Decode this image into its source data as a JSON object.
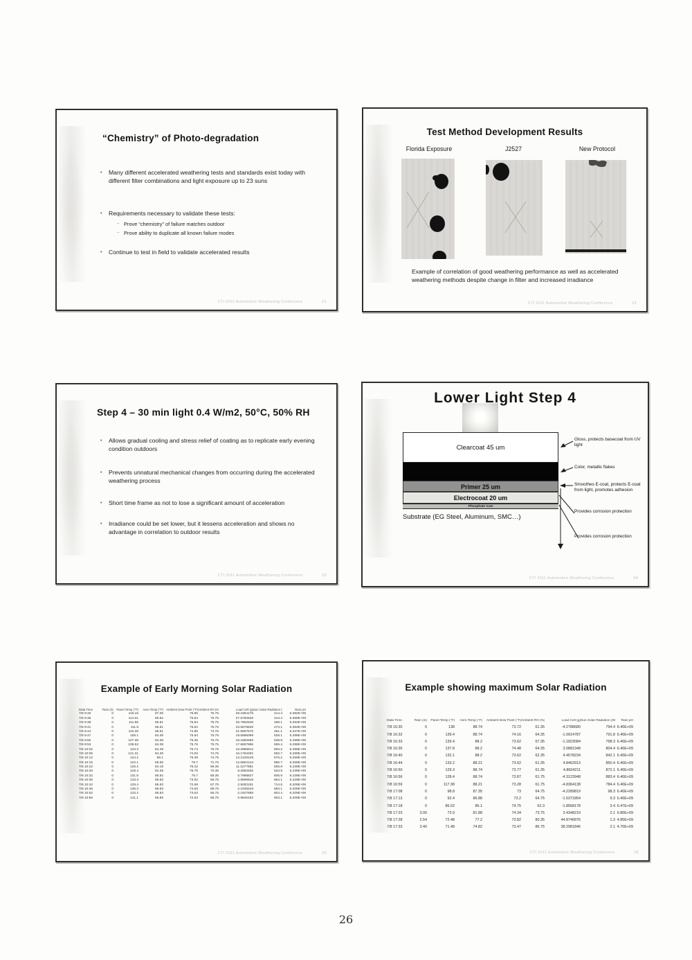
{
  "page": {
    "number": "26"
  },
  "footer": {
    "text": "CTI 2011    Automotive Weathering Conference"
  },
  "slide1": {
    "title": "“Chemistry” of Photo-degradation",
    "bullets": [
      "Many different accelerated weathering tests and standards exist today with different filter combinations and light exposure up to 23 suns",
      "Requirements necessary to validate these tests:",
      "Continue to test in field to validate accelerated results"
    ],
    "sub_bullets": [
      "Prove “chemistry” of failure matches outdoor",
      "Prove ability to duplicate all known failure modes"
    ],
    "footer_num": "21"
  },
  "slide2": {
    "title": "Test Method Development Results",
    "panel_labels": [
      "Florida Exposure",
      "J2527",
      "New Protocol"
    ],
    "caption": "Example of correlation of good weathering performance as well as accelerated weathering methods despite change in filter and increased irradiance",
    "footer_num": "22"
  },
  "slide3": {
    "title": "Step 4 – 30 min light 0.4 W/m2, 50°C, 50% RH",
    "bullets": [
      "Allows gradual cooling and stress relief of coating as to replicate early evening condition outdoors",
      "Prevents unnatural mechanical changes from occurring during the accelerated weathering process",
      "Short time frame as not to lose a significant amount of acceleration",
      "Irradiance could be set lower, but it lessens acceleration and shows no advantage in correlation to outdoor results"
    ],
    "footer_num": "23"
  },
  "slide4": {
    "title": "Lower Light Step 4",
    "layers": {
      "clearcoat": "Clearcoat  45 um",
      "primer": "Primer  25 um",
      "electrocoat": "Electrocoat  20 um",
      "phosphate": "Phosphate  1um"
    },
    "substrate": "Substrate (EG Steel, Aluminum, SMC…)",
    "annotations": [
      "Gloss, protects basecoat from UV light",
      "Color, metallic flakes",
      "Smoothes E-coat, protects E-coat from light, promotes adhesion",
      "Provides corrosion protection",
      "Provides corrosion protection"
    ],
    "footer_num": "24"
  },
  "slide5": {
    "title": "Example of Early Morning Solar Radiation",
    "table": {
      "columns": [
        "Data Time",
        "Rain (in)",
        "Panel Temp (°F)",
        "Aero Temp (°F)",
        "Ambient Dew Point (°F)",
        "Ambient RH (%)",
        "Load Cell (g)",
        "Sun Solar Radiation (W/m",
        "Rain pH"
      ],
      "rows": [
        [
          "7/6 9:33",
          "0",
          "119.16",
          "87.06",
          "75.85",
          "75.75",
          "29.2364178",
          "414.4",
          "6.382E+09"
        ],
        [
          "7/6 9:35",
          "0",
          "114.01",
          "85.62",
          "75.84",
          "75.75",
          "27.5760528",
          "444.4",
          "6.369E+09"
        ],
        [
          "7/6 9:38",
          "0",
          "111.86",
          "85.81",
          "75.84",
          "75.75",
          "25.7862848",
          "488.1",
          "6.362E+09"
        ],
        [
          "7/6 9:41",
          "0",
          "111.8",
          "85.81",
          "75.84",
          "75.75",
          "23.5678828",
          "473.1",
          "6.352E+09"
        ],
        [
          "7/6 9:44",
          "0",
          "110.36",
          "85.61",
          "74.85",
          "74.75",
          "21.5907575",
          "481.1",
          "6.347E+09"
        ],
        [
          "7/6 9:47",
          "0",
          "108.1",
          "84.38",
          "75.84",
          "75.75",
          "19.5895099",
          "528.1",
          "6.298E+09"
        ],
        [
          "7/6 9:50",
          "0",
          "107.38",
          "84.38",
          "75.35",
          "75.75",
          "18.1882559",
          "538.9",
          "6.298E+09"
        ],
        [
          "7/6 9:53",
          "0",
          "108.52",
          "84.38",
          "75.76",
          "75.75",
          "17.6857896",
          "559.4",
          "6.298E+09"
        ],
        [
          "7/6 10:02",
          "0",
          "123.3",
          "84.48",
          "76.73",
          "75.75",
          "16.2988912",
          "593.2",
          "6.289E+09"
        ],
        [
          "7/6 10:05",
          "0",
          "121.31",
          "84.38",
          "74.93",
          "74.75",
          "16.1784292",
          "593.7",
          "6.289E+09"
        ],
        [
          "7/6 10:12",
          "0",
          "124.2",
          "86.1",
          "76.39",
          "74.75",
          "13.2128129",
          "575.2",
          "6.259E+09"
        ],
        [
          "7/6 10:15",
          "0",
          "122.1",
          "85.55",
          "76.7",
          "71.75",
          "12.6864143",
          "580.7",
          "6.259E+09"
        ],
        [
          "7/6 10:22",
          "0",
          "126.2",
          "84.18",
          "76.22",
          "69.36",
          "11.2277881",
          "605.8",
          "6.239E+09"
        ],
        [
          "7/6 10:26",
          "0",
          "129.4",
          "84.38",
          "76.75",
          "70.36",
          "8.2892936",
          "534.8",
          "6.239E+09"
        ],
        [
          "7/6 10:32",
          "0",
          "131.6",
          "85.92",
          "76.7",
          "68.36",
          "5.7998827",
          "605.9",
          "6.239E+09"
        ],
        [
          "7/6 10:36",
          "0",
          "133.3",
          "85.83",
          "73.92",
          "66.75",
          "2.8596818",
          "664.1",
          "6.229E+09"
        ],
        [
          "7/6 10:42",
          "0",
          "129.4",
          "85.83",
          "72.98",
          "67.75",
          "2.9283191",
          "714.6",
          "6.209E+09"
        ],
        [
          "7/6 10:46",
          "0",
          "135.3",
          "85.83",
          "74.83",
          "69.75",
          "2.1948319",
          "683.1",
          "6.209E+09"
        ],
        [
          "7/6 10:52",
          "0",
          "133.2",
          "85.83",
          "73.63",
          "65.75",
          "2.1927859",
          "804.4",
          "6.209E+09"
        ],
        [
          "7/6 10:56",
          "0",
          "141.1",
          "85.85",
          "72.53",
          "68.75",
          "0.9845192",
          "903.1",
          "6.209E+09"
        ]
      ]
    },
    "footer_num": "25"
  },
  "slide6": {
    "title": "Example showing maximum Solar Radiation",
    "table": {
      "columns": [
        "Data Time",
        "Rain (in)",
        "Panel Temp (°F)",
        "Aero Temp (°F)",
        "Ambient Dew Point (°F)",
        "Ambient RH (%)",
        "Load Cell (g)",
        "Sun Solar Radiation (W/m",
        "Rain pH"
      ],
      "rows": [
        [
          "7/8 16:30",
          "0",
          "138",
          "88.74",
          "73.72",
          "61.35",
          "-4.2788680",
          "794.4",
          "6.40E+09"
        ],
        [
          "7/8 16:32",
          "0",
          "139.4",
          "88.74",
          "74.16",
          "64.35",
          "-1.0914787",
          "791.8",
          "6.40E+09"
        ],
        [
          "7/8 16:33",
          "0",
          "139.4",
          "88.2",
          "73.62",
          "67.35",
          "-1.1823084",
          "798.3",
          "6.40E+09"
        ],
        [
          "7/8 16:35",
          "0",
          "137.8",
          "88.2",
          "74.48",
          "64.35",
          "3.0881348",
          "804.4",
          "6.40E+09"
        ],
        [
          "7/8 16:40",
          "0",
          "132.1",
          "88.2",
          "73.62",
          "62.35",
          "4.4578234",
          "842.1",
          "6.40E+09"
        ],
        [
          "7/8 16:44",
          "0",
          "133.2",
          "88.21",
          "73.62",
          "61.35",
          "4.8462913",
          "850.4",
          "6.40E+09"
        ],
        [
          "7/8 16:50",
          "0",
          "129.3",
          "88.74",
          "73.77",
          "61.35",
          "4.8604211",
          "872.1",
          "6.40E+09"
        ],
        [
          "7/8 16:56",
          "0",
          "128.4",
          "88.74",
          "73.87",
          "61.75",
          "-4.3123948",
          "883.4",
          "6.40E+09"
        ],
        [
          "7/8 16:59",
          "0",
          "117.38",
          "88.21",
          "73.28",
          "61.75",
          "-4.8364138",
          "784.4",
          "6.40E+09"
        ],
        [
          "7/8 17:08",
          "0",
          "98.8",
          "87.35",
          "73",
          "64.75",
          "-4.2289819",
          "98.3",
          "6.40E+09"
        ],
        [
          "7/8 17:13",
          "0",
          "92.4",
          "86.88",
          "73.2",
          "64.75",
          "-1.5371854",
          "9.3",
          "6.40E+09"
        ],
        [
          "7/8 17:18",
          "0",
          "86.02",
          "86.1",
          "74.75",
          "62.3",
          "-1.8568178",
          "3.4",
          "6.47E+09"
        ],
        [
          "7/8 17:23",
          "3.00",
          "73.9",
          "81.88",
          "74.34",
          "73.75",
          "3.4348219",
          "2.1",
          "6.80E+09"
        ],
        [
          "7/8 17:28",
          "2.54",
          "72.48",
          "77.2",
          "73.82",
          "80.35",
          "44.8746876",
          "1.3",
          "4.85E+09"
        ],
        [
          "7/8 17:33",
          "3.40",
          "71.48",
          "74.82",
          "73.47",
          "86.75",
          "38.2981846",
          "2.1",
          "4.70E+09"
        ]
      ]
    },
    "footer_num": "26"
  }
}
